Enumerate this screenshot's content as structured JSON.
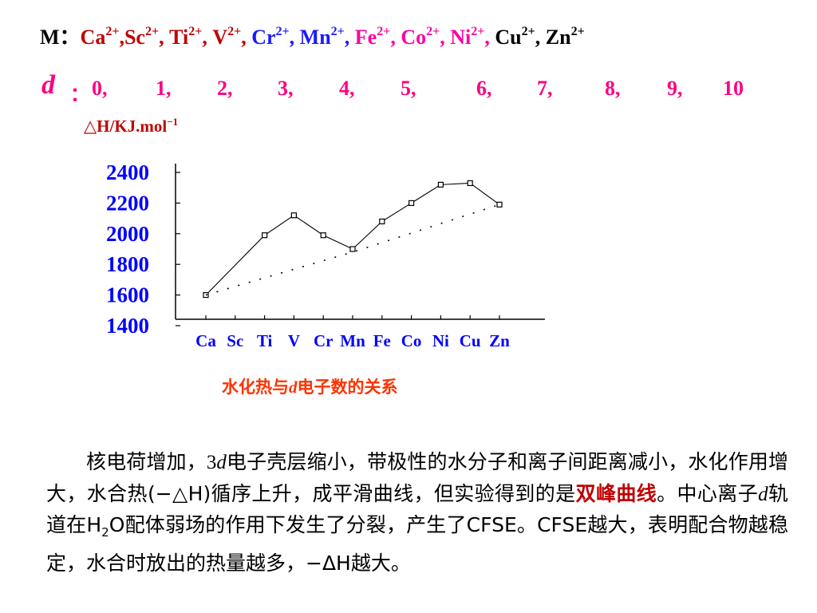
{
  "header": {
    "m_label": "M：",
    "ions": [
      {
        "sym": "Ca",
        "charge": "2+",
        "sep": ",",
        "color": "#c00000"
      },
      {
        "sym": "Sc",
        "charge": "2+",
        "sep": ", ",
        "color": "#c00000"
      },
      {
        "sym": "Ti",
        "charge": "2+",
        "sep": ", ",
        "color": "#c00000"
      },
      {
        "sym": "V",
        "charge": "2+",
        "sep": ", ",
        "color": "#c00000"
      },
      {
        "sym": "Cr",
        "charge": "2+",
        "sep": ", ",
        "color": "#1a1aff"
      },
      {
        "sym": "Mn",
        "charge": "2+",
        "sep": ", ",
        "color": "#1a1aff"
      },
      {
        "sym": "Fe",
        "charge": "2+",
        "sep": ", ",
        "color": "#ff00a0"
      },
      {
        "sym": "Co",
        "charge": "2+",
        "sep": ", ",
        "color": "#ff00a0"
      },
      {
        "sym": "Ni",
        "charge": "2+",
        "sep": ", ",
        "color": "#ff00a0"
      },
      {
        "sym": "Cu",
        "charge": "2+",
        "sep": ", ",
        "color": "#000000"
      },
      {
        "sym": "Zn",
        "charge": "2+",
        "sep": "",
        "color": "#000000"
      }
    ],
    "d_label": "d",
    "d_colon": "：",
    "d_values": [
      "0,",
      "1,",
      "2,",
      "3,",
      "4,",
      "5,",
      "6,",
      "7,",
      "8,",
      "9,",
      "10"
    ],
    "d_color": "#ff0080"
  },
  "chart_data": {
    "type": "line",
    "title": "",
    "ylabel_main": "△H/KJ.mol",
    "ylabel_sup": "−1",
    "ylabel_color": "#c00000",
    "categories": [
      "Ca",
      "Sc",
      "Ti",
      "V",
      "Cr",
      "Mn",
      "Fe",
      "Co",
      "Ni",
      "Cu",
      "Zn"
    ],
    "yticks": [
      2400,
      2200,
      2000,
      1800,
      1600,
      1400
    ],
    "ylim": [
      1400,
      2400
    ],
    "tick_color": "#0000ff",
    "series": [
      {
        "style": "solid",
        "marker": "square",
        "x": [
          0,
          2,
          3,
          4,
          5,
          6,
          7,
          8,
          9,
          10
        ],
        "y": [
          1600,
          1990,
          2120,
          1990,
          1900,
          2080,
          2200,
          2320,
          2330,
          2190
        ]
      },
      {
        "style": "dotted",
        "marker": "none",
        "x": [
          0,
          5,
          10
        ],
        "y": [
          1600,
          1880,
          2190
        ]
      }
    ],
    "caption_pre": "水化热与",
    "caption_d": "d",
    "caption_post": "电子数的关系",
    "caption_color": "#ff3300",
    "grid": false
  },
  "paragraph": {
    "s1": "核电荷增加，",
    "s2_num": "3",
    "s2_d": "d",
    "s3": "电子壳层缩小，带极性的水分子和离子间距离减小，水化作用增大，水合热(−△H)循序上升，成平滑曲线，但实验得到的是",
    "highlight": "双峰曲线",
    "s4": "。中心离子",
    "s5_d": "d",
    "s6": "轨道在H",
    "s6_sub": "2",
    "s7": "O配体弱场的作用下发生了分裂，产生了CFSE。CFSE越大，表明配合物越稳定，水合时放出的热量越多，−ΔH越大。"
  }
}
